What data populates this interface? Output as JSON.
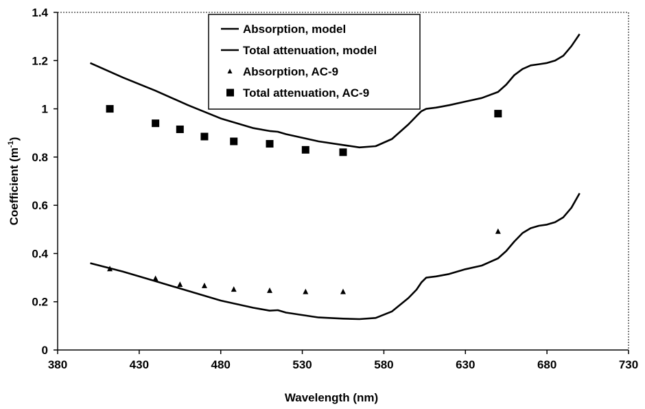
{
  "chart_data": {
    "type": "scatter",
    "xlabel": "Wavelength (nm)",
    "ylabel_main": "Coefficient (m",
    "ylabel_sup": "-1",
    "ylabel_close": ")",
    "xlim": [
      380,
      730
    ],
    "ylim": [
      0,
      1.4
    ],
    "x_ticks": [
      380,
      430,
      480,
      530,
      580,
      630,
      680,
      730
    ],
    "y_ticks": [
      0,
      0.2,
      0.4,
      0.6,
      0.8,
      1,
      1.2,
      1.4
    ],
    "x_tick_labels": [
      "380",
      "430",
      "480",
      "530",
      "580",
      "630",
      "680",
      "730"
    ],
    "y_tick_labels": [
      "0",
      "0.2",
      "0.4",
      "0.6",
      "0.8",
      "1",
      "1.2",
      "1.4"
    ],
    "grid": false,
    "legend_position": "top-center",
    "series": [
      {
        "name": "Absorption, model",
        "kind": "line",
        "color": "#000000",
        "points": [
          [
            400,
            0.36
          ],
          [
            420,
            0.325
          ],
          [
            440,
            0.285
          ],
          [
            460,
            0.245
          ],
          [
            480,
            0.205
          ],
          [
            500,
            0.175
          ],
          [
            510,
            0.163
          ],
          [
            515,
            0.165
          ],
          [
            520,
            0.155
          ],
          [
            540,
            0.135
          ],
          [
            555,
            0.13
          ],
          [
            565,
            0.128
          ],
          [
            575,
            0.133
          ],
          [
            585,
            0.16
          ],
          [
            595,
            0.215
          ],
          [
            600,
            0.25
          ],
          [
            603,
            0.28
          ],
          [
            606,
            0.3
          ],
          [
            612,
            0.305
          ],
          [
            620,
            0.315
          ],
          [
            630,
            0.335
          ],
          [
            640,
            0.35
          ],
          [
            650,
            0.38
          ],
          [
            655,
            0.41
          ],
          [
            660,
            0.45
          ],
          [
            665,
            0.485
          ],
          [
            670,
            0.505
          ],
          [
            675,
            0.515
          ],
          [
            680,
            0.52
          ],
          [
            685,
            0.53
          ],
          [
            690,
            0.55
          ],
          [
            695,
            0.59
          ],
          [
            700,
            0.65
          ]
        ]
      },
      {
        "name": "Total attenuation, model",
        "kind": "line",
        "color": "#000000",
        "points": [
          [
            400,
            1.19
          ],
          [
            420,
            1.13
          ],
          [
            440,
            1.075
          ],
          [
            460,
            1.015
          ],
          [
            480,
            0.96
          ],
          [
            500,
            0.92
          ],
          [
            510,
            0.908
          ],
          [
            515,
            0.905
          ],
          [
            520,
            0.895
          ],
          [
            540,
            0.865
          ],
          [
            555,
            0.85
          ],
          [
            565,
            0.84
          ],
          [
            575,
            0.845
          ],
          [
            585,
            0.875
          ],
          [
            595,
            0.935
          ],
          [
            600,
            0.97
          ],
          [
            603,
            0.99
          ],
          [
            606,
            1.0
          ],
          [
            612,
            1.005
          ],
          [
            620,
            1.015
          ],
          [
            630,
            1.03
          ],
          [
            640,
            1.045
          ],
          [
            650,
            1.07
          ],
          [
            655,
            1.1
          ],
          [
            660,
            1.14
          ],
          [
            665,
            1.165
          ],
          [
            670,
            1.18
          ],
          [
            675,
            1.185
          ],
          [
            680,
            1.19
          ],
          [
            685,
            1.2
          ],
          [
            690,
            1.22
          ],
          [
            695,
            1.26
          ],
          [
            700,
            1.31
          ]
        ]
      },
      {
        "name": "Absorption, AC-9",
        "kind": "marker",
        "marker": "triangle",
        "color": "#000000",
        "points": [
          [
            412,
            0.335
          ],
          [
            440,
            0.295
          ],
          [
            455,
            0.27
          ],
          [
            470,
            0.265
          ],
          [
            488,
            0.25
          ],
          [
            510,
            0.245
          ],
          [
            532,
            0.24
          ],
          [
            555,
            0.24
          ],
          [
            650,
            0.49
          ]
        ]
      },
      {
        "name": "Total attenuation, AC-9",
        "kind": "marker",
        "marker": "square",
        "color": "#000000",
        "points": [
          [
            412,
            1.0
          ],
          [
            440,
            0.94
          ],
          [
            455,
            0.915
          ],
          [
            470,
            0.885
          ],
          [
            488,
            0.865
          ],
          [
            510,
            0.855
          ],
          [
            532,
            0.83
          ],
          [
            555,
            0.82
          ],
          [
            650,
            0.98
          ]
        ]
      }
    ]
  }
}
